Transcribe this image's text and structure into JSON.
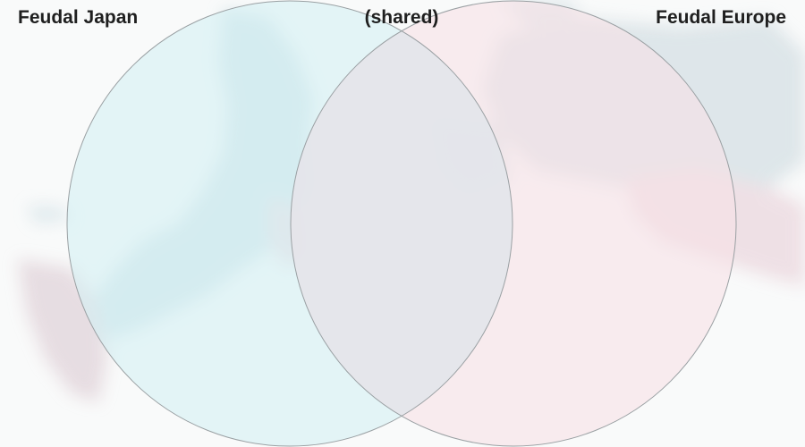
{
  "diagram": {
    "type": "venn",
    "sets": [
      {
        "label": "Feudal Japan",
        "fill": "#d4f0f4",
        "side": "left"
      },
      {
        "label": "Feudal Europe",
        "fill": "#f6e1e6",
        "side": "right"
      }
    ],
    "intersection": {
      "label": "(shared)",
      "fill": "#e2e5ea"
    },
    "outline": "#9aa0a3",
    "background": "#f9fafa"
  }
}
